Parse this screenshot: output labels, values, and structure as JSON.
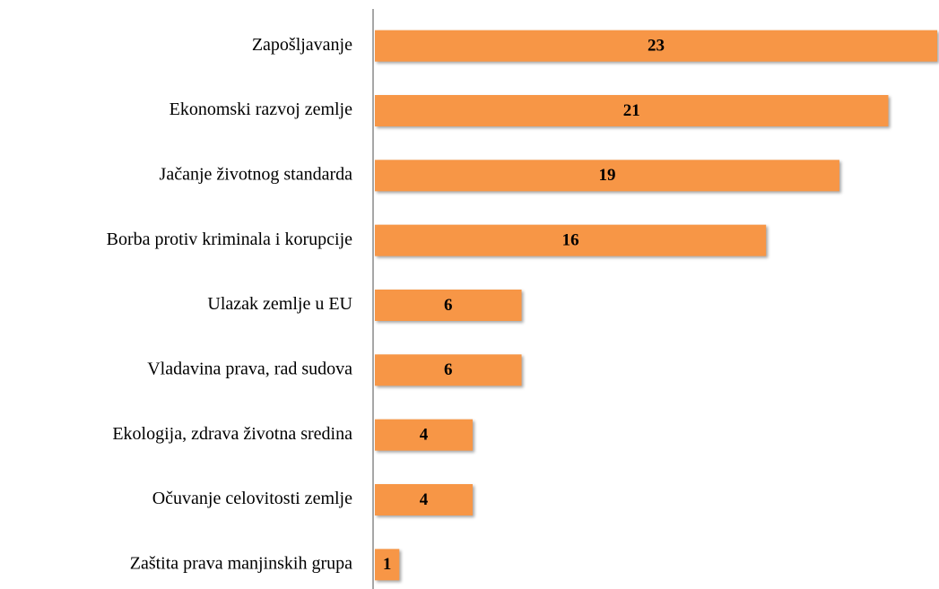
{
  "chart_data": {
    "type": "bar",
    "orientation": "horizontal",
    "categories": [
      "Zapošljavanje",
      "Ekonomski razvoj zemlje",
      "Jačanje životnog standarda",
      "Borba protiv kriminala i korupcije",
      "Ulazak zemlje u EU",
      "Vladavina prava, rad sudova",
      "Ekologija, zdrava životna sredina",
      "Očuvanje celovitosti zemlje",
      "Zaštita prava manjinskih grupa"
    ],
    "values": [
      23,
      21,
      19,
      16,
      6,
      6,
      4,
      4,
      1
    ],
    "color": "#f79646",
    "xlim": [
      0,
      23
    ]
  }
}
